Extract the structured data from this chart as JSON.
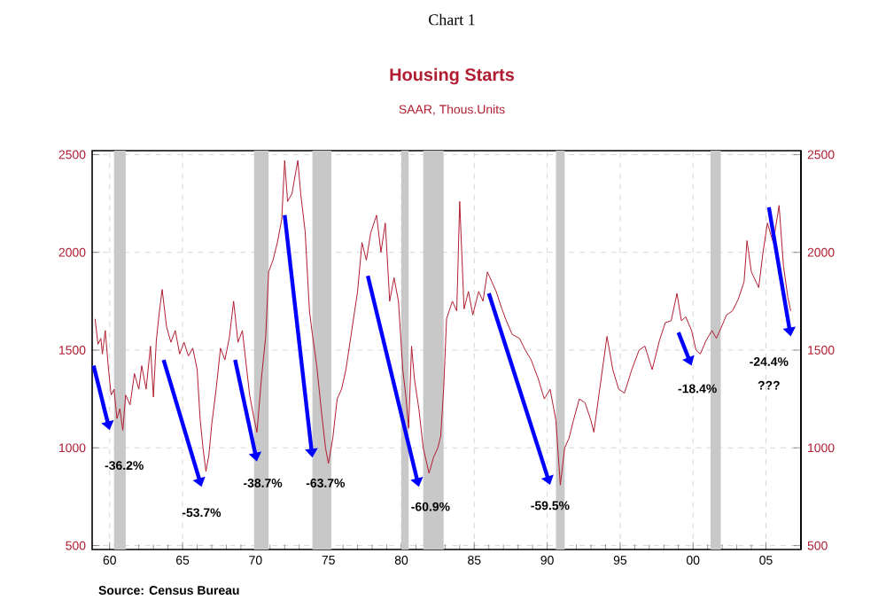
{
  "chart_data": {
    "type": "line",
    "title": "Housing Starts",
    "subtitle": "SAAR, Thous.Units",
    "annotations": [
      "Chart 1",
      "Source:  Census Bureau",
      "-36.2%",
      "-53.7%",
      "-38.7%",
      "-63.7%",
      "-60.9%",
      "-59.5%",
      "-18.4%",
      "-24.4%",
      "???"
    ],
    "series": [
      {
        "color": "#b01c30",
        "x": [
          1959.0,
          1959.2,
          1959.4,
          1959.5,
          1959.7,
          1959.9,
          1960.1,
          1960.3,
          1960.5,
          1960.7,
          1960.9,
          1961.1,
          1961.4,
          1961.7,
          1962.0,
          1962.2,
          1962.5,
          1962.8,
          1963.0,
          1963.2,
          1963.4,
          1963.6,
          1963.9,
          1964.2,
          1964.5,
          1964.8,
          1965.1,
          1965.4,
          1965.7,
          1966.0,
          1966.2,
          1966.4,
          1966.6,
          1966.8,
          1967.0,
          1967.3,
          1967.6,
          1967.9,
          1968.2,
          1968.5,
          1968.8,
          1969.1,
          1969.4,
          1969.6,
          1969.9,
          1970.1,
          1970.4,
          1970.7,
          1970.9,
          1971.2,
          1971.5,
          1971.8,
          1972.0,
          1972.2,
          1972.5,
          1972.9,
          1973.1,
          1973.4,
          1973.7,
          1973.9,
          1974.2,
          1974.5,
          1974.8,
          1975.0,
          1975.3,
          1975.6,
          1975.9,
          1976.2,
          1976.5,
          1976.8,
          1977.0,
          1977.3,
          1977.6,
          1977.9,
          1978.3,
          1978.6,
          1978.9,
          1979.2,
          1979.5,
          1979.8,
          1980.1,
          1980.3,
          1980.5,
          1980.7,
          1980.9,
          1981.2,
          1981.5,
          1981.9,
          1982.2,
          1982.5,
          1982.7,
          1982.9,
          1983.1,
          1983.5,
          1983.8,
          1984.0,
          1984.3,
          1984.6,
          1984.9,
          1985.3,
          1985.6,
          1985.9,
          1986.2,
          1986.5,
          1986.9,
          1987.2,
          1987.6,
          1988.1,
          1988.5,
          1988.9,
          1989.4,
          1989.8,
          1990.2,
          1990.6,
          1990.9,
          1991.2,
          1991.5,
          1991.8,
          1992.2,
          1992.6,
          1993.0,
          1993.2,
          1993.6,
          1994.1,
          1994.5,
          1994.9,
          1995.3,
          1995.8,
          1996.3,
          1996.7,
          1997.2,
          1997.7,
          1998.1,
          1998.5,
          1998.9,
          1999.2,
          1999.5,
          1999.9,
          2000.2,
          2000.5,
          2000.9,
          2001.3,
          2001.6,
          2001.9,
          2002.3,
          2002.7,
          2003.1,
          2003.5,
          2003.7,
          2004.0,
          2004.5,
          2004.8,
          2005.1,
          2005.5,
          2005.9,
          2006.2,
          2006.5,
          2006.7
        ],
        "values": [
          1660,
          1530,
          1560,
          1480,
          1600,
          1420,
          1270,
          1300,
          1150,
          1200,
          1090,
          1270,
          1220,
          1380,
          1300,
          1420,
          1300,
          1520,
          1260,
          1550,
          1690,
          1810,
          1620,
          1540,
          1600,
          1480,
          1540,
          1470,
          1510,
          1400,
          1150,
          1000,
          880,
          960,
          1120,
          1300,
          1510,
          1450,
          1560,
          1750,
          1540,
          1600,
          1400,
          1270,
          1150,
          1080,
          1350,
          1570,
          1900,
          1960,
          2050,
          2170,
          2470,
          2260,
          2300,
          2470,
          2300,
          2110,
          1700,
          1580,
          1420,
          1200,
          1000,
          920,
          1050,
          1250,
          1300,
          1400,
          1550,
          1700,
          1800,
          2050,
          1960,
          2100,
          2190,
          2000,
          2150,
          1750,
          1870,
          1750,
          1400,
          1270,
          1100,
          1520,
          1350,
          1200,
          1000,
          870,
          950,
          1000,
          1060,
          1300,
          1660,
          1750,
          1700,
          2260,
          1710,
          1800,
          1680,
          1800,
          1750,
          1900,
          1850,
          1800,
          1710,
          1650,
          1580,
          1560,
          1500,
          1450,
          1350,
          1250,
          1300,
          1140,
          810,
          1000,
          1050,
          1140,
          1250,
          1230,
          1140,
          1080,
          1300,
          1570,
          1400,
          1300,
          1280,
          1400,
          1500,
          1520,
          1400,
          1550,
          1640,
          1650,
          1790,
          1650,
          1670,
          1600,
          1500,
          1480,
          1550,
          1600,
          1560,
          1610,
          1680,
          1700,
          1760,
          1850,
          2060,
          1900,
          1820,
          2000,
          2150,
          2050,
          2240,
          1930,
          1770,
          1700
        ]
      }
    ],
    "bands": [
      {
        "axis": "x",
        "from": 1960.3,
        "to": 1961.1,
        "color": "#c8c8c8"
      },
      {
        "axis": "x",
        "from": 1969.9,
        "to": 1970.9,
        "color": "#c8c8c8"
      },
      {
        "axis": "x",
        "from": 1973.9,
        "to": 1975.2,
        "color": "#c8c8c8"
      },
      {
        "axis": "x",
        "from": 1980.0,
        "to": 1980.5,
        "color": "#c8c8c8"
      },
      {
        "axis": "x",
        "from": 1981.5,
        "to": 1982.9,
        "color": "#c8c8c8"
      },
      {
        "axis": "x",
        "from": 1990.6,
        "to": 1991.2,
        "color": "#c8c8c8"
      },
      {
        "axis": "x",
        "from": 2001.2,
        "to": 2001.9,
        "color": "#c8c8c8"
      }
    ],
    "xlim": [
      1958.8,
      2007.4
    ],
    "xticks": [
      {
        "value": 1960,
        "label": "60"
      },
      {
        "value": 1965,
        "label": "65"
      },
      {
        "value": 1970,
        "label": "70"
      },
      {
        "value": 1975,
        "label": "75"
      },
      {
        "value": 1980,
        "label": "80"
      },
      {
        "value": 1985,
        "label": "85"
      },
      {
        "value": 1990,
        "label": "90"
      },
      {
        "value": 1995,
        "label": "95"
      },
      {
        "value": 2000,
        "label": "00"
      },
      {
        "value": 2005,
        "label": "05"
      }
    ],
    "ylim": [
      480,
      2520
    ],
    "yticks": [
      500,
      1000,
      1500,
      2000,
      2500
    ],
    "y2lim": [
      480,
      2520
    ],
    "y2ticks": [
      500,
      1000,
      1500,
      2000,
      2500
    ],
    "grid": true
  }
}
